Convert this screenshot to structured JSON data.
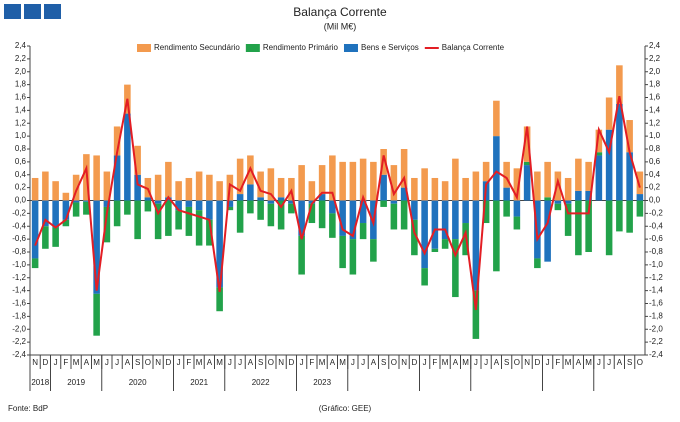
{
  "chart_data": {
    "type": "bar",
    "title": "Balança Corrente",
    "subtitle": "(Mil M€)",
    "source": "Fonte: BdP",
    "credit": "(Gráfico: GEE)",
    "categories": [
      "N",
      "D",
      "J",
      "F",
      "M",
      "A",
      "M",
      "J",
      "J",
      "A",
      "S",
      "O",
      "N",
      "D",
      "J",
      "F",
      "M",
      "A",
      "M",
      "J",
      "J",
      "A",
      "S",
      "O",
      "N",
      "D",
      "J",
      "F",
      "M",
      "A",
      "M",
      "J",
      "J",
      "A",
      "S",
      "O",
      "N",
      "D",
      "J",
      "F",
      "M",
      "A",
      "M",
      "J",
      "J",
      "A",
      "S",
      "O",
      "N",
      "D",
      "J",
      "F",
      "M",
      "A",
      "M",
      "J",
      "J",
      "A",
      "S",
      "O"
    ],
    "years": [
      "2018",
      "2019",
      "2020",
      "2021",
      "2022",
      "2023"
    ],
    "ylim": [
      -2.4,
      2.4
    ],
    "yticks": [
      {
        "value": -2.4,
        "label": "-2,4"
      },
      {
        "value": -2.2,
        "label": "-2,2"
      },
      {
        "value": -2.0,
        "label": "-2,0"
      },
      {
        "value": -1.8,
        "label": "-1,8"
      },
      {
        "value": -1.6,
        "label": "-1,6"
      },
      {
        "value": -1.4,
        "label": "-1,4"
      },
      {
        "value": -1.2,
        "label": "-1,2"
      },
      {
        "value": -1.0,
        "label": "-1,0"
      },
      {
        "value": -0.8,
        "label": "-0,8"
      },
      {
        "value": -0.6,
        "label": "-0,6"
      },
      {
        "value": -0.4,
        "label": "-0,4"
      },
      {
        "value": -0.2,
        "label": "-0,2"
      },
      {
        "value": 0,
        "label": "0,0"
      },
      {
        "value": 0.2,
        "label": "0,2"
      },
      {
        "value": 0.4,
        "label": "0,4"
      },
      {
        "value": 0.6,
        "label": "0,6"
      },
      {
        "value": 0.8,
        "label": "0,8"
      },
      {
        "value": 1.0,
        "label": "1,0"
      },
      {
        "value": 1.2,
        "label": "1,2"
      },
      {
        "value": 1.4,
        "label": "1,4"
      },
      {
        "value": 1.6,
        "label": "1,6"
      },
      {
        "value": 1.8,
        "label": "1,8"
      },
      {
        "value": 2.0,
        "label": "2,0"
      },
      {
        "value": 2.2,
        "label": "2,2"
      },
      {
        "value": 2.4,
        "label": "2,4"
      }
    ],
    "series": [
      {
        "name": "Rendimento Secundário",
        "color": "#f39a4e",
        "type": "bar",
        "values": [
          0.35,
          0.45,
          0.3,
          0.12,
          0.4,
          0.72,
          0.7,
          0.45,
          0.45,
          0.45,
          0.45,
          0.3,
          0.4,
          0.55,
          0.3,
          0.35,
          0.45,
          0.4,
          0.3,
          0.4,
          0.55,
          0.45,
          0.4,
          0.5,
          0.3,
          0.35,
          0.55,
          0.3,
          0.45,
          0.7,
          0.6,
          0.6,
          0.65,
          0.6,
          0.4,
          0.55,
          0.6,
          0.35,
          0.5,
          0.35,
          0.3,
          0.65,
          0.35,
          0.45,
          0.3,
          0.55,
          0.4,
          0.5,
          0.55,
          0.45,
          0.55,
          0.45,
          0.35,
          0.5,
          0.45,
          0.35,
          0.5,
          0.6,
          0.5,
          0.35
        ]
      },
      {
        "name": "Rendimento Primário",
        "color": "#22a24a",
        "type": "bar",
        "values": [
          -0.15,
          -0.35,
          -0.3,
          -0.1,
          -0.22,
          -0.2,
          -0.65,
          -0.55,
          -0.4,
          -0.22,
          -0.6,
          -0.17,
          -0.55,
          -0.55,
          -0.3,
          -0.45,
          -0.55,
          -0.4,
          -0.37,
          -0.05,
          -0.5,
          -0.2,
          -0.3,
          -0.35,
          -0.45,
          -0.15,
          -0.6,
          -0.3,
          -0.43,
          -0.38,
          -0.5,
          -0.55,
          -0.25,
          -0.35,
          -0.1,
          -0.4,
          -0.45,
          -0.55,
          -0.27,
          -0.05,
          -0.15,
          -0.9,
          -0.5,
          -0.75,
          -0.35,
          -1.1,
          -0.25,
          -0.2,
          0.05,
          -0.15,
          0.05,
          -0.1,
          -0.5,
          -0.85,
          -0.8,
          0.05,
          -0.85,
          -0.48,
          -0.5,
          -0.25
        ]
      },
      {
        "name": "Bens e Serviços",
        "color": "#1f72bd",
        "type": "bar",
        "values": [
          -0.9,
          -0.4,
          -0.42,
          -0.3,
          -0.03,
          -0.02,
          -1.45,
          -0.1,
          0.7,
          1.35,
          0.4,
          0.05,
          -0.05,
          0.05,
          -0.15,
          -0.1,
          -0.15,
          -0.3,
          -1.35,
          -0.1,
          0.1,
          0.25,
          0.05,
          -0.05,
          0.05,
          -0.05,
          -0.55,
          -0.05,
          0.1,
          -0.2,
          -0.55,
          -0.6,
          -0.35,
          -0.6,
          0.4,
          -0.05,
          0.2,
          -0.3,
          -1.05,
          -0.75,
          -0.6,
          -0.6,
          -0.35,
          -1.4,
          0.3,
          1.0,
          0.2,
          -0.25,
          0.55,
          -0.9,
          -0.95,
          -0.05,
          -0.05,
          0.15,
          0.15,
          0.7,
          1.1,
          1.5,
          0.75,
          0.1
        ]
      },
      {
        "name": "Balança Corrente",
        "color": "#e31e24",
        "type": "line",
        "values": [
          -0.7,
          -0.3,
          -0.42,
          -0.3,
          0.15,
          0.5,
          -1.4,
          -0.2,
          0.75,
          1.58,
          0.25,
          0.18,
          -0.2,
          0.05,
          -0.15,
          -0.2,
          -0.25,
          -0.3,
          -1.42,
          0.25,
          0.15,
          0.5,
          0.15,
          0.1,
          -0.1,
          0.15,
          -0.6,
          -0.05,
          0.12,
          0.12,
          -0.45,
          -0.55,
          0.05,
          -0.35,
          0.7,
          0.1,
          0.35,
          -0.5,
          -0.82,
          -0.45,
          -0.45,
          -0.85,
          -0.5,
          -1.7,
          0.25,
          0.45,
          0.35,
          0.05,
          1.15,
          -0.6,
          -0.35,
          0.3,
          -0.2,
          -0.2,
          -0.2,
          1.1,
          0.75,
          1.62,
          0.75,
          0.2
        ]
      }
    ]
  }
}
